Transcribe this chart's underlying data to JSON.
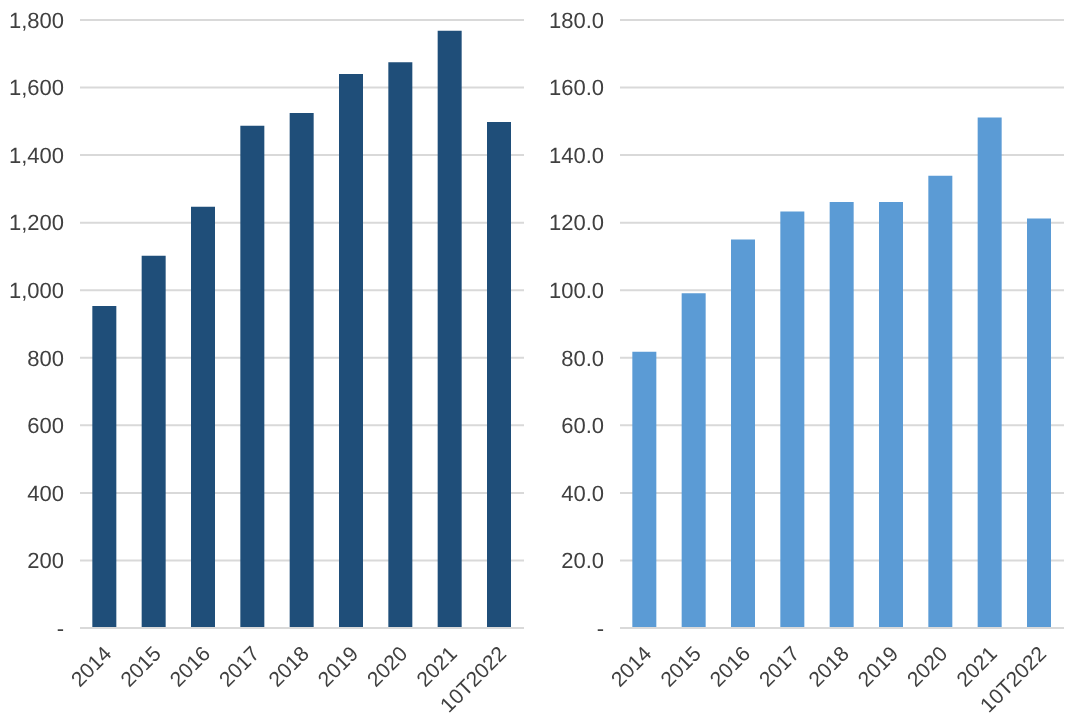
{
  "chart_data": [
    {
      "type": "bar",
      "categories": [
        "2014",
        "2015",
        "2016",
        "2017",
        "2018",
        "2019",
        "2020",
        "2021",
        "10T2022"
      ],
      "values": [
        953,
        1102,
        1247,
        1487,
        1525,
        1640,
        1675,
        1768,
        1498
      ],
      "color": "#1f4e79",
      "ylim": [
        0,
        1800
      ],
      "yticks": [
        {
          "value": 0,
          "label": "-"
        },
        {
          "value": 200,
          "label": "200"
        },
        {
          "value": 400,
          "label": "400"
        },
        {
          "value": 600,
          "label": "600"
        },
        {
          "value": 800,
          "label": "800"
        },
        {
          "value": 1000,
          "label": "1,000"
        },
        {
          "value": 1200,
          "label": "1,200"
        },
        {
          "value": 1400,
          "label": "1,400"
        },
        {
          "value": 1600,
          "label": "1,600"
        },
        {
          "value": 1800,
          "label": "1,800"
        }
      ],
      "grid": "y"
    },
    {
      "type": "bar",
      "categories": [
        "2014",
        "2015",
        "2016",
        "2017",
        "2018",
        "2019",
        "2020",
        "2021",
        "10T2022"
      ],
      "values": [
        81.8,
        99.1,
        115,
        123.3,
        126.1,
        126.1,
        133.9,
        151.1,
        121.2
      ],
      "color": "#5b9bd5",
      "ylim": [
        0,
        180
      ],
      "yticks": [
        {
          "value": 0,
          "label": "-"
        },
        {
          "value": 20,
          "label": "20.0"
        },
        {
          "value": 40,
          "label": "40.0"
        },
        {
          "value": 60,
          "label": "60.0"
        },
        {
          "value": 80,
          "label": "80.0"
        },
        {
          "value": 100,
          "label": "100.0"
        },
        {
          "value": 120,
          "label": "120.0"
        },
        {
          "value": 140,
          "label": "140.0"
        },
        {
          "value": 160,
          "label": "160.0"
        },
        {
          "value": 180,
          "label": "180.0"
        }
      ],
      "grid": "y"
    }
  ]
}
